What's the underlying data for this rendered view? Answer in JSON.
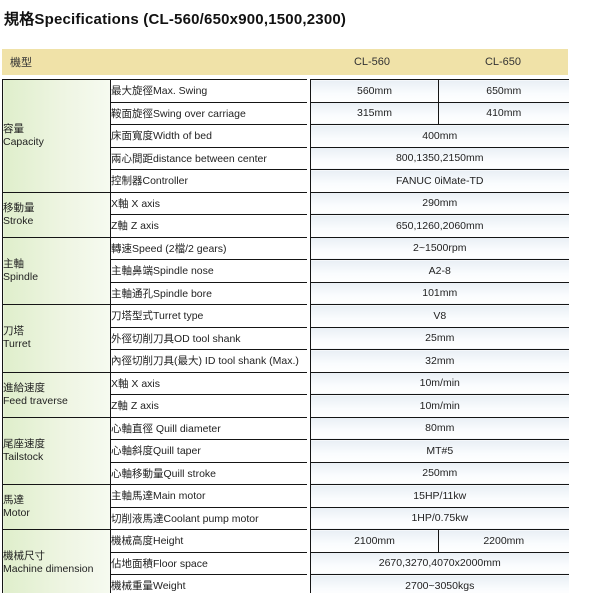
{
  "title": "規格Specifications (CL-560/650x900,1500,2300)",
  "header": {
    "model_label": "機型",
    "columns": [
      "CL-560",
      "CL-650"
    ]
  },
  "groups": [
    {
      "category": {
        "zh": "容量",
        "en": "Capacity"
      },
      "rows": [
        {
          "label": "最大旋徑Max. Swing",
          "values": [
            "560mm",
            "650mm"
          ]
        },
        {
          "label": "鞍面旋徑Swing over carriage",
          "values": [
            "315mm",
            "410mm"
          ]
        },
        {
          "label": "床面寬度Width of bed",
          "values": [
            "400mm"
          ]
        },
        {
          "label": "兩心間距distance between center",
          "values": [
            "800,1350,2150mm"
          ]
        },
        {
          "label": "控制器Controller",
          "values": [
            "FANUC 0iMate-TD"
          ]
        }
      ]
    },
    {
      "category": {
        "zh": "移動量",
        "en": "Stroke"
      },
      "rows": [
        {
          "label": "X軸 X axis",
          "values": [
            "290mm"
          ]
        },
        {
          "label": "Z軸 Z axis",
          "values": [
            "650,1260,2060mm"
          ]
        }
      ]
    },
    {
      "category": {
        "zh": "主軸",
        "en": "Spindle"
      },
      "rows": [
        {
          "label": "轉速Speed (2檔/2 gears)",
          "values": [
            "2~1500rpm"
          ]
        },
        {
          "label": "主軸鼻端Spindle nose",
          "values": [
            "A2-8"
          ]
        },
        {
          "label": "主軸通孔Spindle bore",
          "values": [
            "101mm"
          ]
        }
      ]
    },
    {
      "category": {
        "zh": "刀塔",
        "en": "Turret"
      },
      "rows": [
        {
          "label": "刀塔型式Turret type",
          "values": [
            "V8"
          ]
        },
        {
          "label": "外徑切削刀具OD tool shank",
          "values": [
            "25mm"
          ]
        },
        {
          "label": "內徑切削刀具(最大) ID tool shank (Max.)",
          "values": [
            "32mm"
          ]
        }
      ]
    },
    {
      "category": {
        "zh": "進給速度",
        "en": "Feed traverse"
      },
      "rows": [
        {
          "label": "X軸 X axis",
          "values": [
            "10m/min"
          ]
        },
        {
          "label": "Z軸 Z axis",
          "values": [
            "10m/min"
          ]
        }
      ]
    },
    {
      "category": {
        "zh": "尾座速度",
        "en": "Tailstock"
      },
      "rows": [
        {
          "label": "心軸直徑 Quill diameter",
          "values": [
            "80mm"
          ]
        },
        {
          "label": "心軸斜度Quill taper",
          "values": [
            "MT#5"
          ]
        },
        {
          "label": "心軸移動量Quill stroke",
          "values": [
            "250mm"
          ]
        }
      ]
    },
    {
      "category": {
        "zh": "馬達",
        "en": "Motor"
      },
      "rows": [
        {
          "label": "主軸馬達Main motor",
          "values": [
            "15HP/11kw"
          ]
        },
        {
          "label": "切削液馬達Coolant pump motor",
          "values": [
            "1HP/0.75kw"
          ]
        }
      ]
    },
    {
      "category": {
        "zh": "機械尺寸",
        "en": "Machine dimension"
      },
      "rows": [
        {
          "label": "機械高度Height",
          "values": [
            "2100mm",
            "2200mm"
          ]
        },
        {
          "label": "佔地面積Floor space",
          "values": [
            "2670,3270,4070x2000mm"
          ]
        },
        {
          "label": "機械重量Weight",
          "values": [
            "2700~3050kgs"
          ]
        }
      ]
    }
  ],
  "colors": {
    "header_bg": "#f0e2a8",
    "category_gradient_start": "#dfeecb",
    "category_gradient_end": "#f6faf0",
    "value_cell_tint": "#e9eff5",
    "border": "#151515",
    "text": "#222222"
  }
}
